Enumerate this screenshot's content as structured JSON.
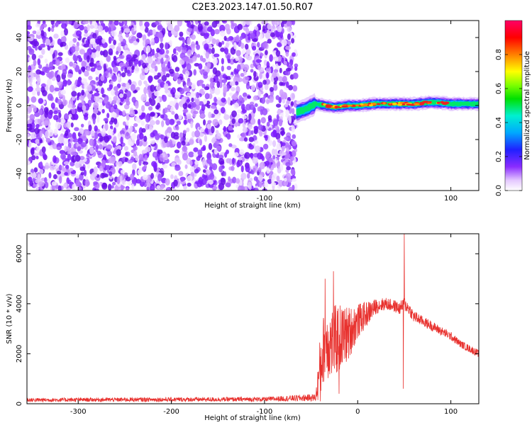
{
  "title": "C2E3.2023.147.01.50.R07",
  "colors": {
    "noise_purple": "#7f1fff",
    "signal_red": "#ee2222",
    "line_red": "#e8312e",
    "axis": "#000000"
  },
  "chart_data": [
    {
      "type": "heatmap",
      "title": "C2E3.2023.147.01.50.R07",
      "xlabel": "Height of straight line (km)",
      "ylabel": "Frequency (Hz)",
      "xlim": [
        -355,
        130
      ],
      "ylim": [
        -50,
        50
      ],
      "xticks": [
        -300,
        -200,
        -100,
        0,
        100
      ],
      "yticks": [
        -40,
        -20,
        0,
        20,
        40
      ],
      "colorbar": {
        "label": "Normalized spectral amplitude",
        "range": [
          0,
          1
        ],
        "ticks": [
          0.0,
          0.2,
          0.4,
          0.6,
          0.8
        ],
        "colormap": "rainbow (white→purple→blue→cyan→green→yellow→red→magenta)"
      },
      "regions": [
        {
          "x_range": [
            -355,
            -66
          ],
          "description_values": {
            "freq_range": [
              -50,
              50
            ],
            "amplitude_range": [
              0.0,
              0.3
            ]
          }
        },
        {
          "x_range": [
            -66,
            130
          ],
          "description_values": {
            "freq_center": [
              -5,
              1
            ],
            "freq_halfwidth": 3,
            "amplitude_peak": 0.9
          }
        }
      ],
      "signal_ridge": {
        "x": [
          -66,
          -55,
          -45,
          -35,
          -25,
          -10,
          0,
          20,
          40,
          60,
          80,
          100,
          130
        ],
        "freq": [
          -4,
          -2,
          1,
          0,
          -1,
          0,
          0,
          1,
          1,
          1,
          2,
          1,
          1
        ]
      }
    },
    {
      "type": "line",
      "xlabel": "Height of straight line (km)",
      "ylabel": "SNR (10 * v/v)",
      "xlim": [
        -355,
        130
      ],
      "ylim": [
        0,
        6800
      ],
      "xticks": [
        -300,
        -200,
        -100,
        0,
        100
      ],
      "yticks": [
        0,
        2000,
        4000,
        6000
      ],
      "series": [
        {
          "color": "#e8312e",
          "envelope_x": [
            -355,
            -300,
            -200,
            -100,
            -45,
            -40,
            -35,
            -30,
            -20,
            -10,
            0,
            10,
            20,
            30,
            40,
            45,
            50,
            55,
            60,
            70,
            80,
            90,
            100,
            110,
            120,
            130
          ],
          "envelope_mean": [
            150,
            160,
            170,
            180,
            250,
            1500,
            2500,
            2400,
            2600,
            2800,
            3300,
            3600,
            3900,
            4000,
            3900,
            3800,
            4000,
            3800,
            3500,
            3300,
            3100,
            2900,
            2700,
            2400,
            2200,
            2000
          ],
          "envelope_spread": [
            80,
            80,
            90,
            90,
            150,
            1400,
            1400,
            1500,
            1400,
            1100,
            700,
            500,
            300,
            250,
            250,
            250,
            300,
            250,
            250,
            200,
            200,
            180,
            170,
            150,
            150,
            150
          ],
          "spikes": [
            {
              "x": 50,
              "y": 6800
            },
            {
              "x": 49,
              "y": 600
            },
            {
              "x": -26,
              "y": 5300
            },
            {
              "x": -35,
              "y": 5000
            },
            {
              "x": -20,
              "y": 400
            },
            {
              "x": -40,
              "y": 100
            }
          ]
        }
      ]
    }
  ]
}
